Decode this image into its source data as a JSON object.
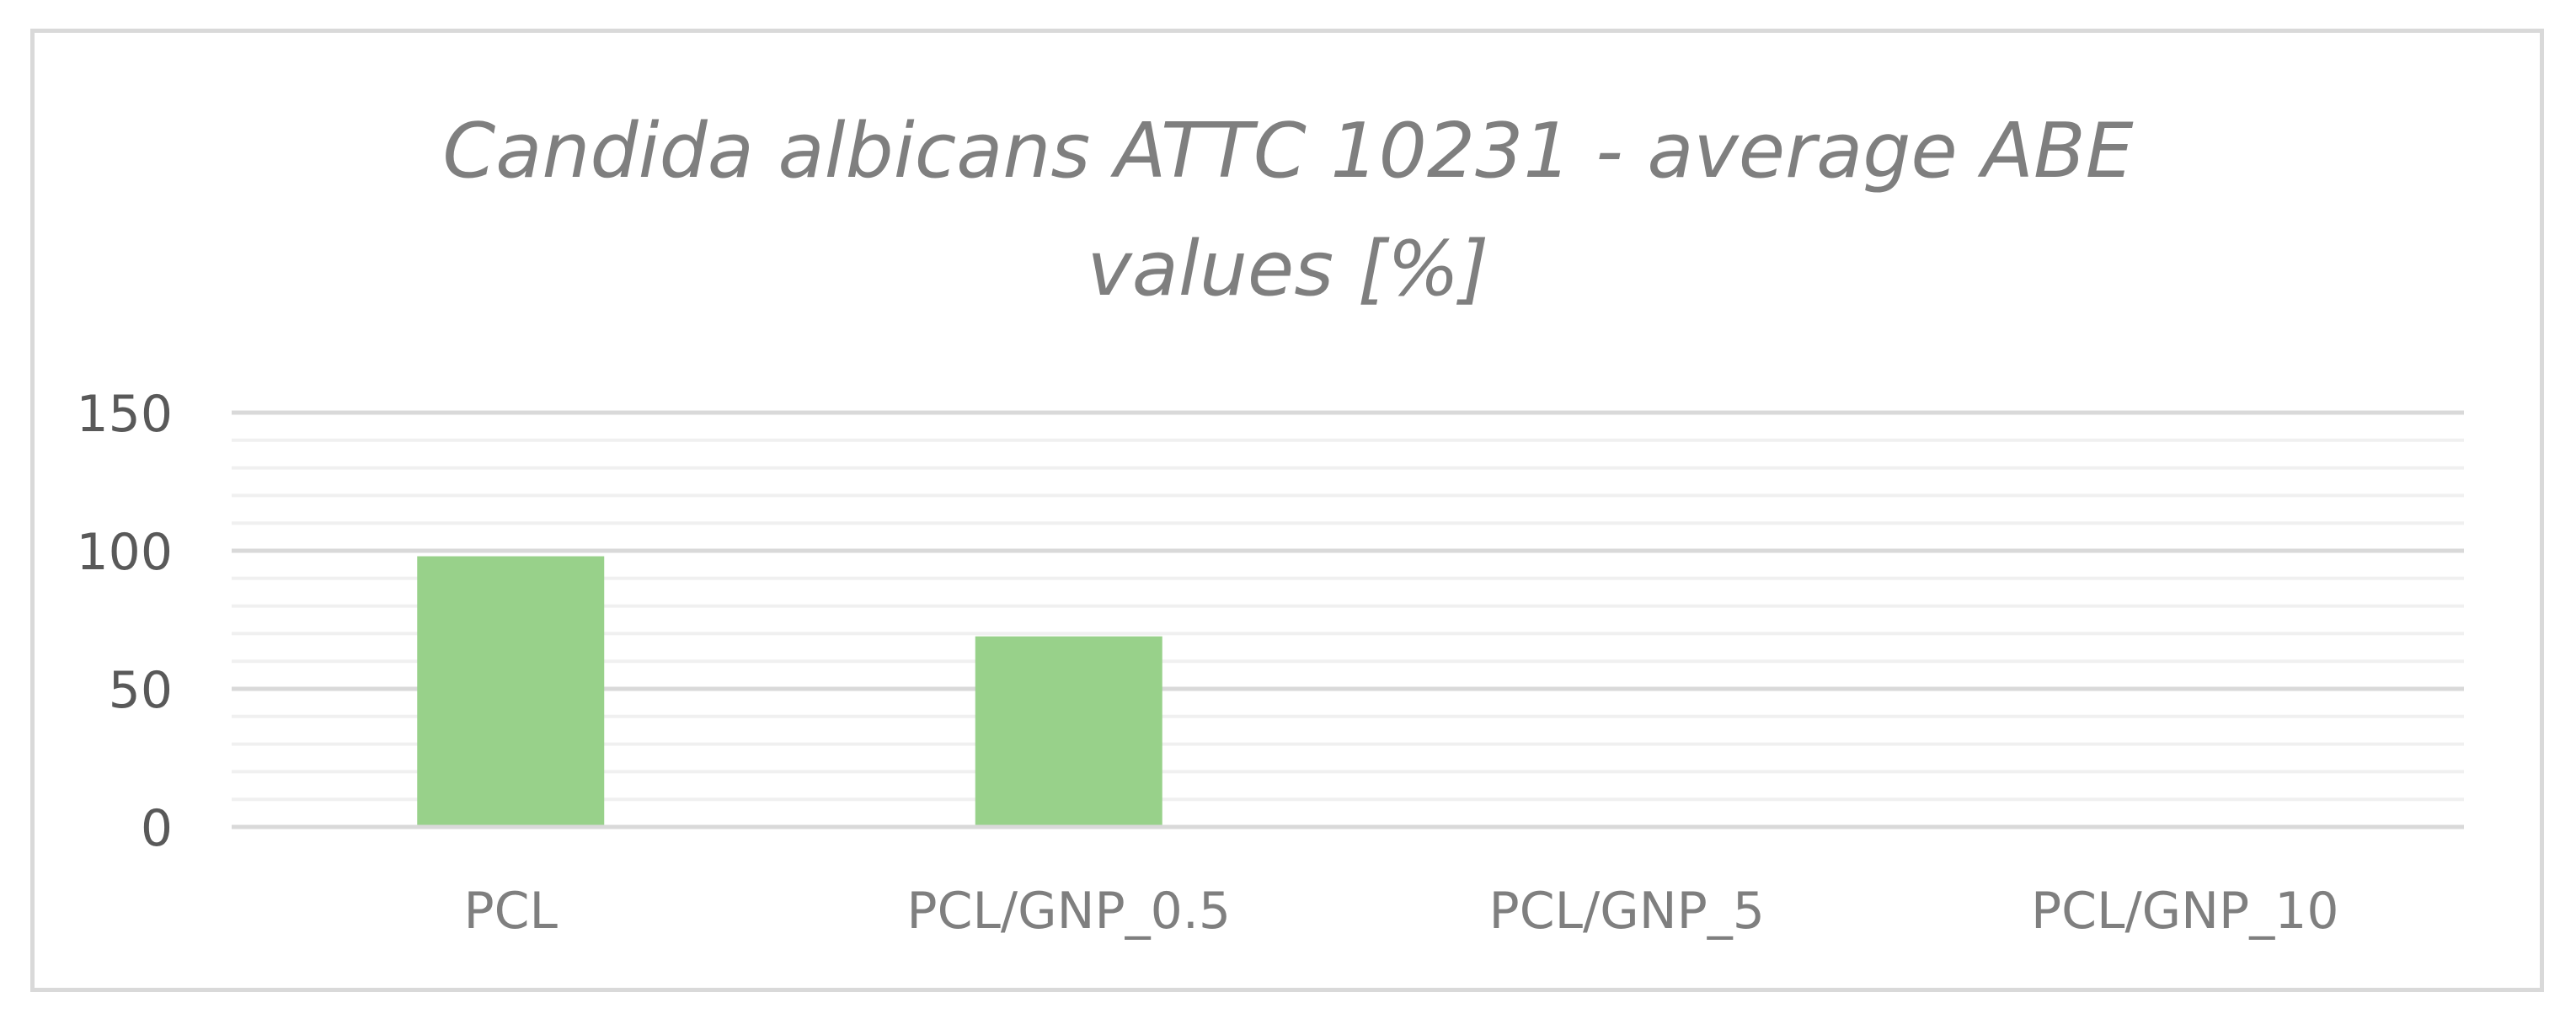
{
  "chart_data": {
    "type": "bar",
    "title_lines": [
      "Candida albicans ATTC 10231 - average ABE",
      "values [%]"
    ],
    "categories": [
      "PCL",
      "PCL/GNP_0.5",
      "PCL/GNP_5",
      "PCL/GNP_10"
    ],
    "values": [
      98,
      69,
      0,
      0
    ],
    "xlabel": "",
    "ylabel": "",
    "ylim": [
      0,
      150
    ],
    "yticks": [
      0,
      50,
      100,
      150
    ],
    "major_grid": true,
    "minor_grid": true,
    "legend": "none",
    "bar_color": "#98d18a",
    "major_grid_color": "#d9d9d9",
    "minor_grid_color": "#f0f0f0",
    "axis_color": "#d9d9d9"
  }
}
